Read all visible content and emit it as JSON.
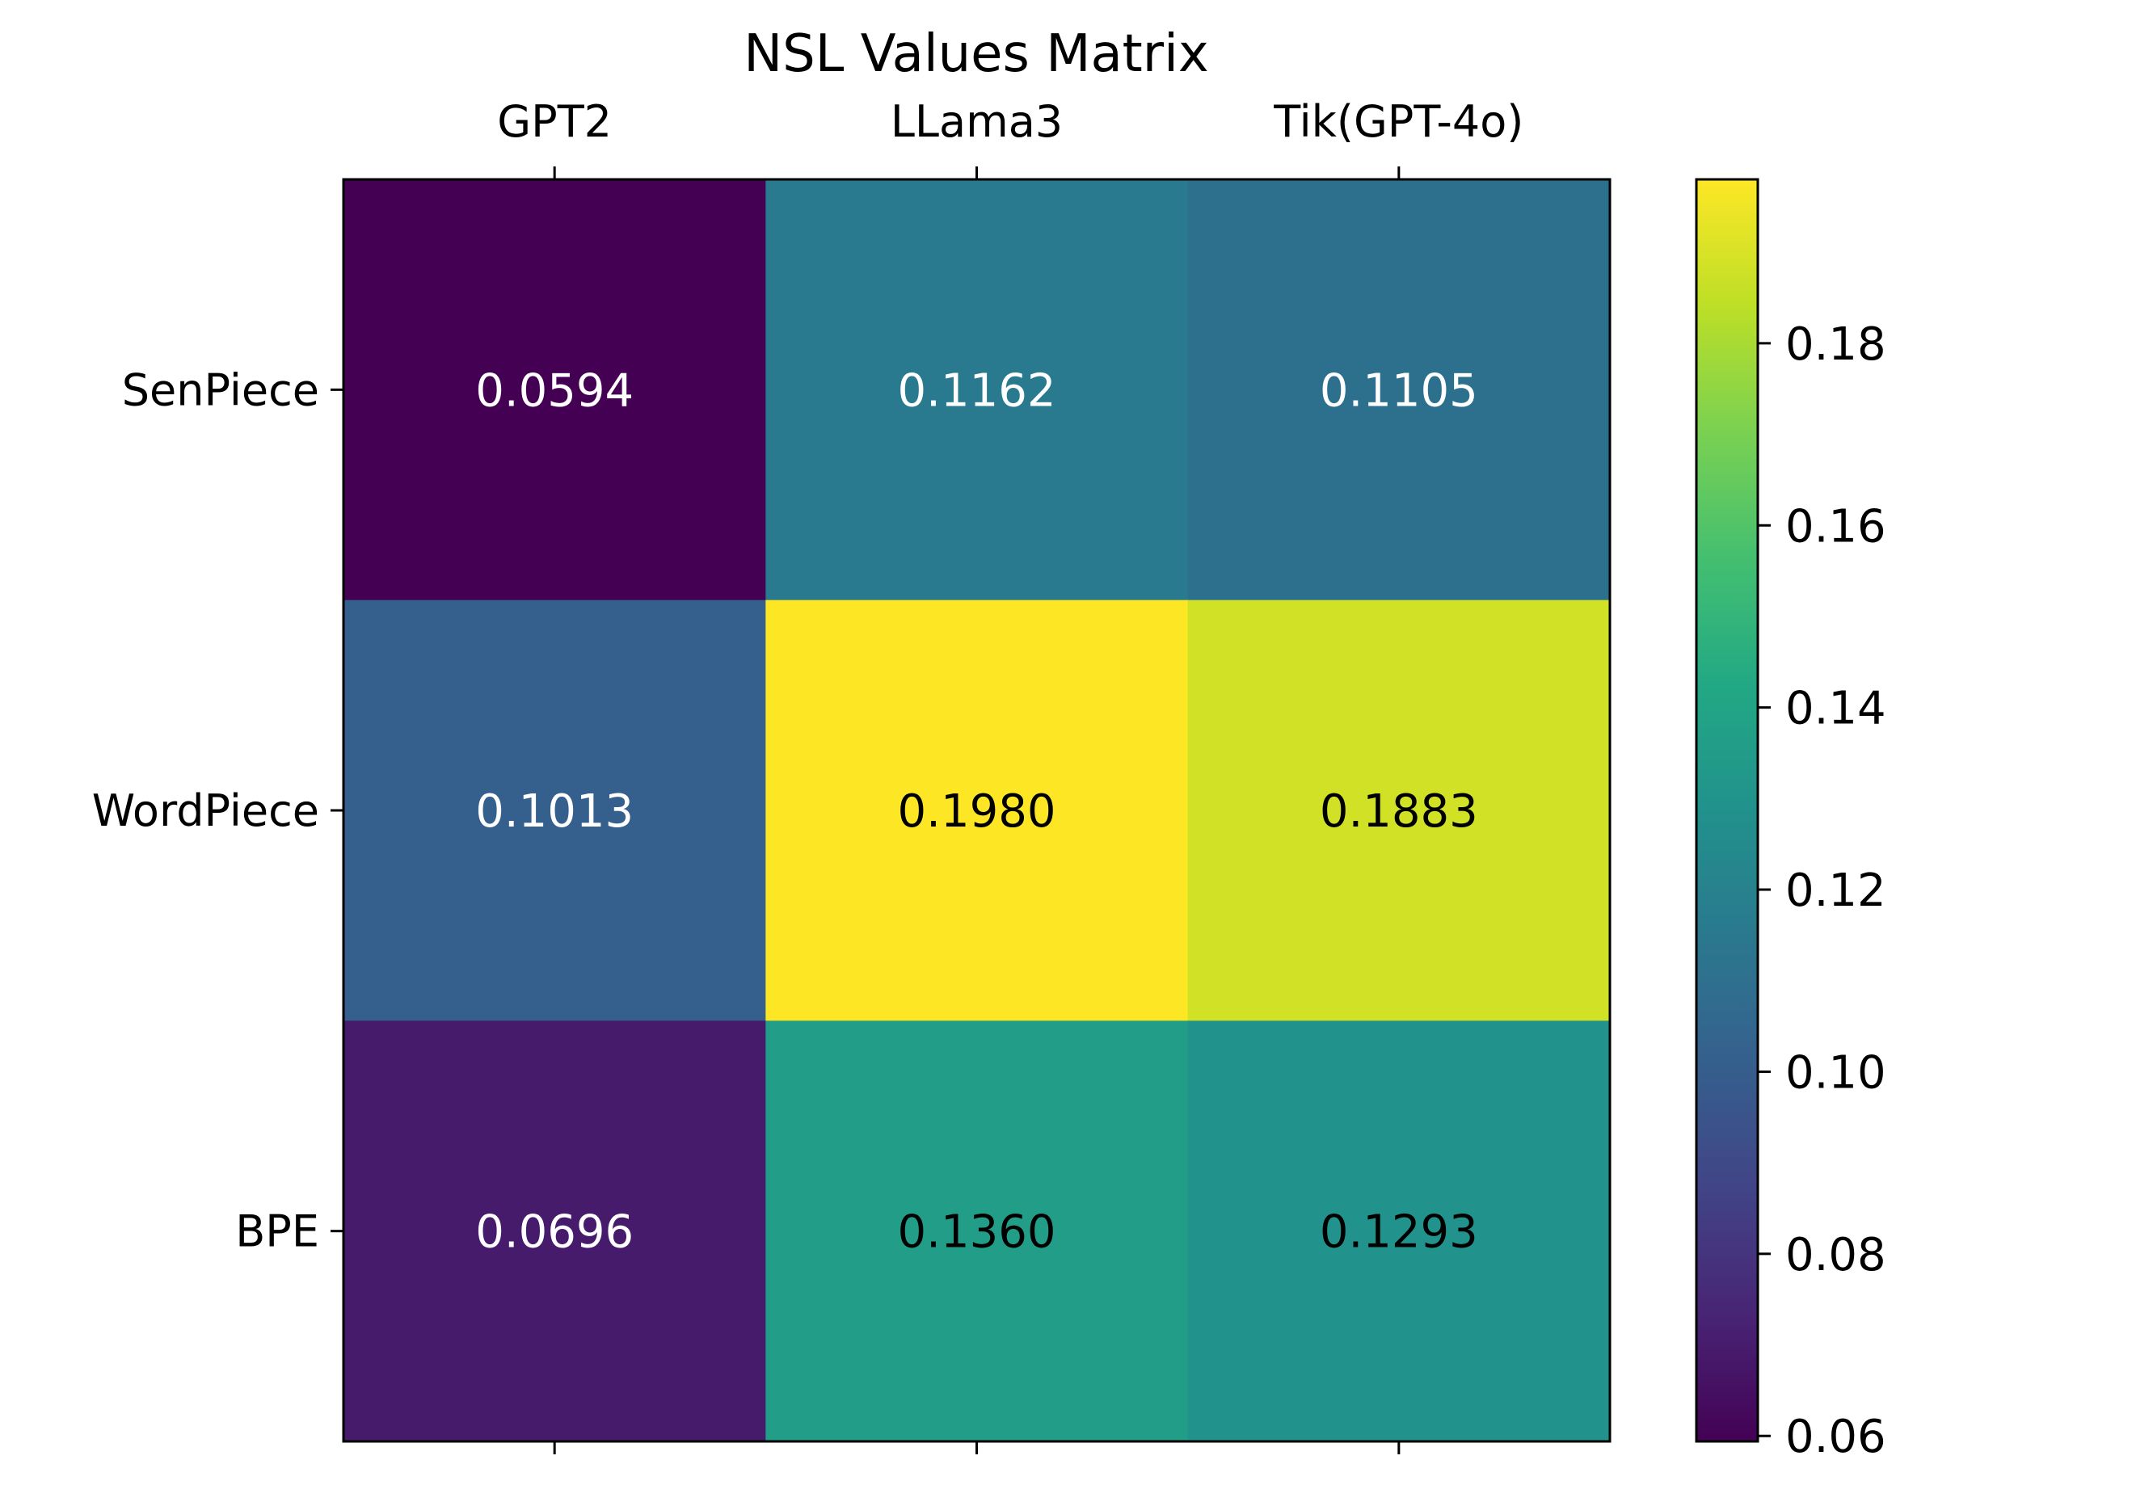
{
  "chart_data": {
    "type": "heatmap",
    "title": "NSL Values Matrix",
    "x_categories": [
      "GPT2",
      "LLama3",
      "Tik(GPT-4o)"
    ],
    "y_categories": [
      "SenPiece",
      "WordPiece",
      "BPE"
    ],
    "values": [
      [
        0.0594,
        0.1162,
        0.1105
      ],
      [
        0.1013,
        0.198,
        0.1883
      ],
      [
        0.0696,
        0.136,
        0.1293
      ]
    ],
    "value_labels": [
      [
        "0.0594",
        "0.1162",
        "0.1105"
      ],
      [
        "0.1013",
        "0.1980",
        "0.1883"
      ],
      [
        "0.0696",
        "0.1360",
        "0.1293"
      ]
    ],
    "colormap": "viridis",
    "vmin": 0.0594,
    "vmax": 0.198,
    "colorbar_ticks": [
      "0.06",
      "0.08",
      "0.10",
      "0.12",
      "0.14",
      "0.16",
      "0.18"
    ],
    "x_axis_position": "top",
    "grid": false
  }
}
